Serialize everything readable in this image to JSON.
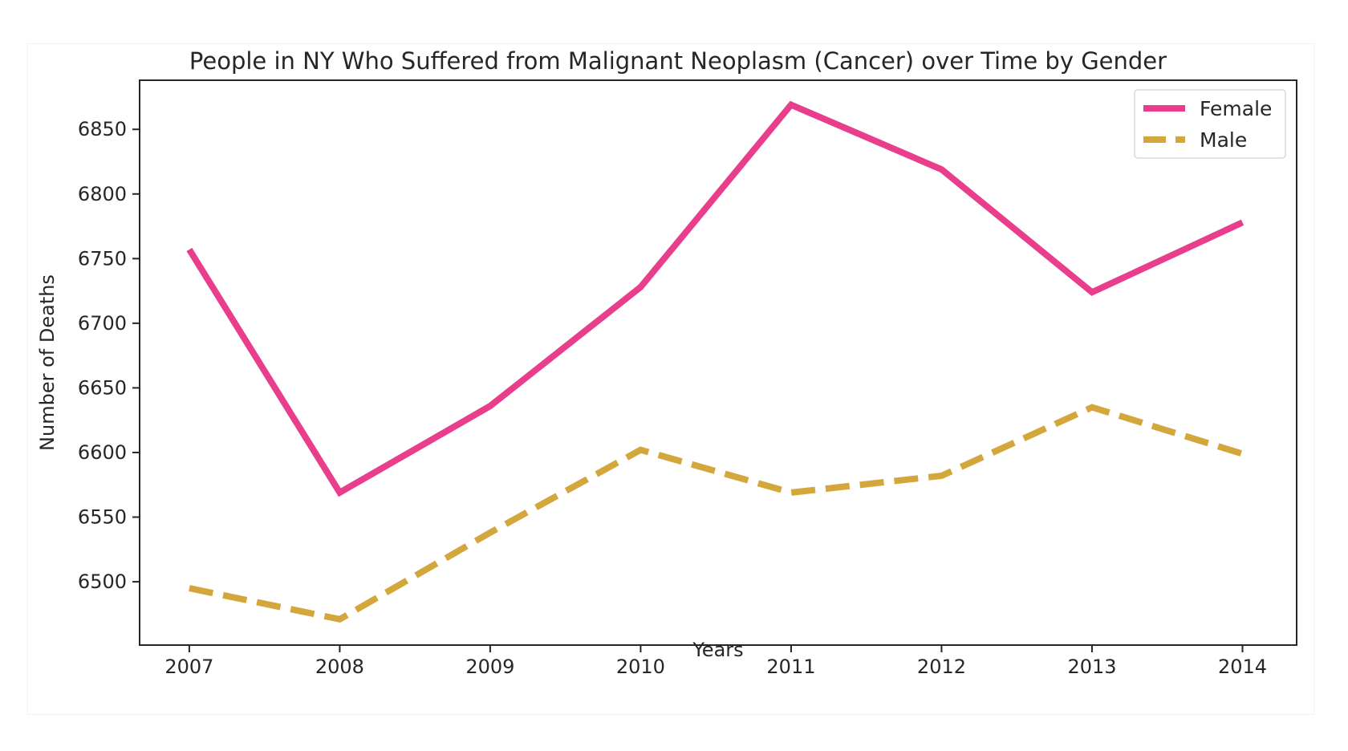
{
  "chart_data": {
    "type": "line",
    "title": "People in NY Who Suffered from Malignant Neoplasm (Cancer) over Time by Gender",
    "xlabel": "Years",
    "ylabel": "Number of Deaths",
    "x": [
      2007,
      2008,
      2009,
      2010,
      2011,
      2012,
      2013,
      2014
    ],
    "xlim": [
      2006.67,
      2014.36
    ],
    "ylim": [
      6451,
      6888
    ],
    "yticks": [
      6500,
      6550,
      6600,
      6650,
      6700,
      6750,
      6800,
      6850
    ],
    "grid": false,
    "legend_position": "top-right",
    "series": [
      {
        "name": "Female",
        "color": "#e83e8c",
        "style": "solid",
        "values": [
          6757,
          6569,
          6636,
          6728,
          6869,
          6819,
          6724,
          6778
        ]
      },
      {
        "name": "Male",
        "color": "#d4a73c",
        "style": "dashed",
        "values": [
          6495,
          6471,
          6538,
          6602,
          6569,
          6582,
          6635,
          6599
        ]
      }
    ]
  }
}
